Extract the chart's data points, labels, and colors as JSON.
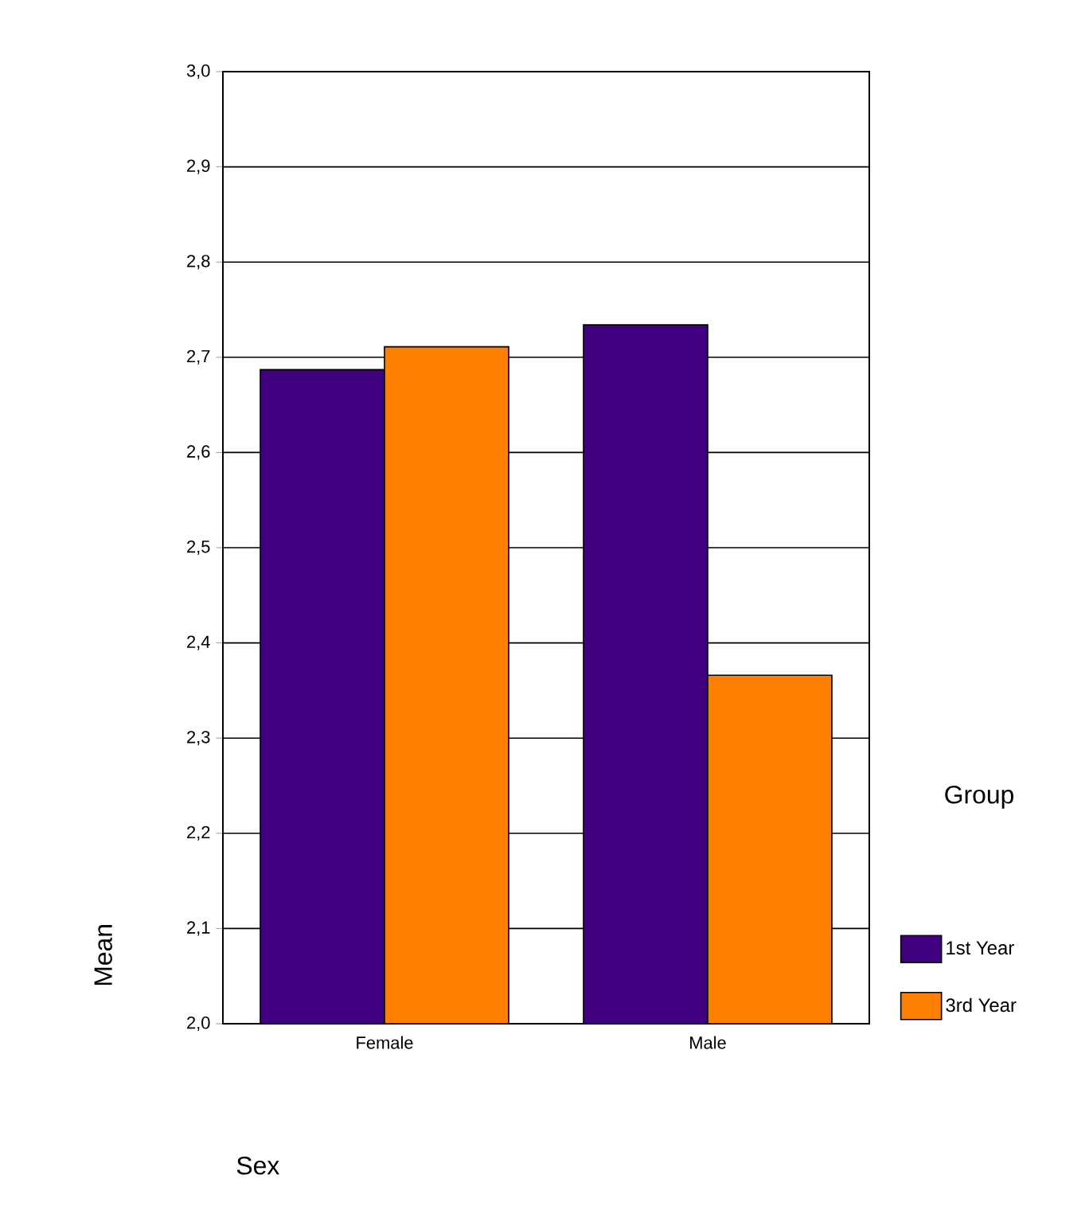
{
  "chart_data": {
    "type": "bar",
    "xlabel": "Sex",
    "ylabel": "Mean",
    "legend_title": "Group",
    "categories": [
      "Female",
      "Male"
    ],
    "series": [
      {
        "name": "1st Year",
        "color": "#400080",
        "values": [
          2.687,
          2.734
        ]
      },
      {
        "name": "3rd Year",
        "color": "#ff8000",
        "values": [
          2.711,
          2.366
        ]
      }
    ],
    "ylim": [
      2.0,
      3.0
    ],
    "yticks": [
      {
        "value": 2.0,
        "label": "2,0"
      },
      {
        "value": 2.1,
        "label": "2,1"
      },
      {
        "value": 2.2,
        "label": "2,2"
      },
      {
        "value": 2.3,
        "label": "2,3"
      },
      {
        "value": 2.4,
        "label": "2,4"
      },
      {
        "value": 2.5,
        "label": "2,5"
      },
      {
        "value": 2.6,
        "label": "2,6"
      },
      {
        "value": 2.7,
        "label": "2,7"
      },
      {
        "value": 2.8,
        "label": "2,8"
      },
      {
        "value": 2.9,
        "label": "2,9"
      },
      {
        "value": 3.0,
        "label": "3,0"
      }
    ],
    "grid": "y",
    "legend": "right"
  }
}
